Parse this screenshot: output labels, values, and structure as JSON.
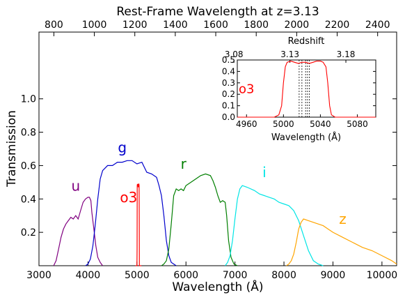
{
  "chart_data": [
    {
      "type": "line",
      "title": "Rest-Frame Wavelength at z=3.13",
      "xlabel": "Wavelength (Å)",
      "ylabel": "Transmission",
      "xlim": [
        3000,
        10300
      ],
      "ylim": [
        0.0,
        1.4
      ],
      "x_ticks": [
        3000,
        4000,
        5000,
        6000,
        7000,
        8000,
        9000,
        10000
      ],
      "y_ticks": [
        0.2,
        0.4,
        0.6,
        0.8,
        1.0
      ],
      "top_axis": {
        "label": "Rest-Frame Wavelength at z=3.13",
        "redshift": 3.13,
        "ticks": [
          800,
          1000,
          1200,
          1400,
          1600,
          1800,
          2000,
          2200,
          2400
        ]
      },
      "series": [
        {
          "name": "u",
          "color": "#800080",
          "label_at": [
            3750,
            0.45
          ],
          "points": [
            [
              3300,
              0.0
            ],
            [
              3350,
              0.03
            ],
            [
              3400,
              0.1
            ],
            [
              3450,
              0.17
            ],
            [
              3500,
              0.22
            ],
            [
              3550,
              0.25
            ],
            [
              3600,
              0.27
            ],
            [
              3650,
              0.29
            ],
            [
              3700,
              0.28
            ],
            [
              3750,
              0.3
            ],
            [
              3800,
              0.28
            ],
            [
              3850,
              0.33
            ],
            [
              3900,
              0.38
            ],
            [
              3950,
              0.4
            ],
            [
              4000,
              0.41
            ],
            [
              4030,
              0.41
            ],
            [
              4060,
              0.39
            ],
            [
              4080,
              0.32
            ],
            [
              4120,
              0.22
            ],
            [
              4160,
              0.12
            ],
            [
              4200,
              0.05
            ],
            [
              4250,
              0.02
            ],
            [
              4300,
              0.0
            ]
          ]
        },
        {
          "name": "g",
          "color": "#0000cc",
          "label_at": [
            4700,
            0.68
          ],
          "points": [
            [
              3950,
              0.0
            ],
            [
              4000,
              0.01
            ],
            [
              4050,
              0.04
            ],
            [
              4100,
              0.12
            ],
            [
              4150,
              0.25
            ],
            [
              4200,
              0.4
            ],
            [
              4250,
              0.52
            ],
            [
              4300,
              0.57
            ],
            [
              4400,
              0.6
            ],
            [
              4500,
              0.6
            ],
            [
              4600,
              0.62
            ],
            [
              4700,
              0.62
            ],
            [
              4800,
              0.63
            ],
            [
              4900,
              0.63
            ],
            [
              5000,
              0.61
            ],
            [
              5100,
              0.62
            ],
            [
              5200,
              0.56
            ],
            [
              5300,
              0.55
            ],
            [
              5400,
              0.53
            ],
            [
              5450,
              0.48
            ],
            [
              5500,
              0.42
            ],
            [
              5550,
              0.3
            ],
            [
              5600,
              0.15
            ],
            [
              5650,
              0.06
            ],
            [
              5700,
              0.02
            ],
            [
              5800,
              0.0
            ]
          ]
        },
        {
          "name": "o3",
          "color": "#ff0000",
          "label_at": [
            4830,
            0.38
          ],
          "points": [
            [
              4970,
              0.0
            ],
            [
              5000,
              0.0
            ],
            [
              5003,
              0.1
            ],
            [
              5006,
              0.48
            ],
            [
              5010,
              0.49
            ],
            [
              5015,
              0.48
            ],
            [
              5020,
              0.49
            ],
            [
              5025,
              0.47
            ],
            [
              5030,
              0.48
            ],
            [
              5035,
              0.49
            ],
            [
              5040,
              0.49
            ],
            [
              5044,
              0.48
            ],
            [
              5047,
              0.3
            ],
            [
              5050,
              0.0
            ],
            [
              5090,
              0.0
            ]
          ]
        },
        {
          "name": "r",
          "color": "#007f00",
          "label_at": [
            5950,
            0.58
          ],
          "points": [
            [
              5500,
              0.0
            ],
            [
              5550,
              0.01
            ],
            [
              5600,
              0.03
            ],
            [
              5650,
              0.1
            ],
            [
              5700,
              0.25
            ],
            [
              5750,
              0.42
            ],
            [
              5800,
              0.46
            ],
            [
              5850,
              0.45
            ],
            [
              5900,
              0.46
            ],
            [
              5950,
              0.45
            ],
            [
              6000,
              0.48
            ],
            [
              6100,
              0.5
            ],
            [
              6200,
              0.52
            ],
            [
              6300,
              0.54
            ],
            [
              6400,
              0.55
            ],
            [
              6500,
              0.54
            ],
            [
              6550,
              0.51
            ],
            [
              6600,
              0.47
            ],
            [
              6650,
              0.42
            ],
            [
              6700,
              0.38
            ],
            [
              6750,
              0.39
            ],
            [
              6800,
              0.38
            ],
            [
              6830,
              0.3
            ],
            [
              6870,
              0.15
            ],
            [
              6920,
              0.05
            ],
            [
              6980,
              0.01
            ],
            [
              7050,
              0.0
            ]
          ]
        },
        {
          "name": "i",
          "color": "#00e5e5",
          "label_at": [
            7600,
            0.53
          ],
          "points": [
            [
              6800,
              0.0
            ],
            [
              6850,
              0.02
            ],
            [
              6900,
              0.06
            ],
            [
              6950,
              0.15
            ],
            [
              7000,
              0.28
            ],
            [
              7050,
              0.4
            ],
            [
              7100,
              0.46
            ],
            [
              7150,
              0.48
            ],
            [
              7250,
              0.47
            ],
            [
              7400,
              0.45
            ],
            [
              7500,
              0.43
            ],
            [
              7600,
              0.42
            ],
            [
              7700,
              0.41
            ],
            [
              7800,
              0.4
            ],
            [
              7900,
              0.38
            ],
            [
              8000,
              0.37
            ],
            [
              8100,
              0.36
            ],
            [
              8200,
              0.33
            ],
            [
              8300,
              0.27
            ],
            [
              8400,
              0.18
            ],
            [
              8500,
              0.09
            ],
            [
              8600,
              0.03
            ],
            [
              8700,
              0.01
            ],
            [
              8800,
              0.0
            ]
          ]
        },
        {
          "name": "z",
          "color": "#ffa500",
          "label_at": [
            9200,
            0.25
          ],
          "points": [
            [
              8050,
              0.0
            ],
            [
              8100,
              0.01
            ],
            [
              8150,
              0.03
            ],
            [
              8200,
              0.07
            ],
            [
              8250,
              0.14
            ],
            [
              8300,
              0.22
            ],
            [
              8350,
              0.26
            ],
            [
              8400,
              0.28
            ],
            [
              8500,
              0.27
            ],
            [
              8600,
              0.26
            ],
            [
              8700,
              0.25
            ],
            [
              8800,
              0.24
            ],
            [
              8900,
              0.22
            ],
            [
              9000,
              0.2
            ],
            [
              9200,
              0.17
            ],
            [
              9400,
              0.14
            ],
            [
              9600,
              0.11
            ],
            [
              9800,
              0.09
            ],
            [
              10000,
              0.06
            ],
            [
              10200,
              0.03
            ],
            [
              10300,
              0.01
            ]
          ]
        }
      ]
    },
    {
      "type": "line",
      "title": "",
      "xlabel": "Wavelength (Å)",
      "ylabel": "",
      "xlim": [
        4950,
        5100
      ],
      "ylim": [
        0.0,
        0.5
      ],
      "x_ticks": [
        4960,
        5000,
        5040,
        5080
      ],
      "y_ticks": [
        0.0,
        0.1,
        0.2,
        0.3,
        0.4,
        0.5
      ],
      "top_axis": {
        "label": "Redshift",
        "ticks": [
          3.08,
          3.13,
          3.18
        ]
      },
      "series": [
        {
          "name": "o3",
          "color": "#ff0000",
          "label_at": [
            4960,
            0.21
          ],
          "points": [
            [
              4950,
              0.0
            ],
            [
              4990,
              0.0
            ],
            [
              4995,
              0.02
            ],
            [
              4998,
              0.1
            ],
            [
              5000,
              0.3
            ],
            [
              5002,
              0.44
            ],
            [
              5004,
              0.48
            ],
            [
              5008,
              0.49
            ],
            [
              5012,
              0.48
            ],
            [
              5016,
              0.47
            ],
            [
              5020,
              0.48
            ],
            [
              5024,
              0.48
            ],
            [
              5028,
              0.47
            ],
            [
              5032,
              0.48
            ],
            [
              5036,
              0.49
            ],
            [
              5040,
              0.49
            ],
            [
              5043,
              0.48
            ],
            [
              5046,
              0.44
            ],
            [
              5048,
              0.3
            ],
            [
              5050,
              0.1
            ],
            [
              5052,
              0.02
            ],
            [
              5056,
              0.0
            ],
            [
              5100,
              0.0
            ]
          ]
        }
      ],
      "vlines": [
        5017,
        5020,
        5024,
        5026,
        5028
      ]
    }
  ]
}
